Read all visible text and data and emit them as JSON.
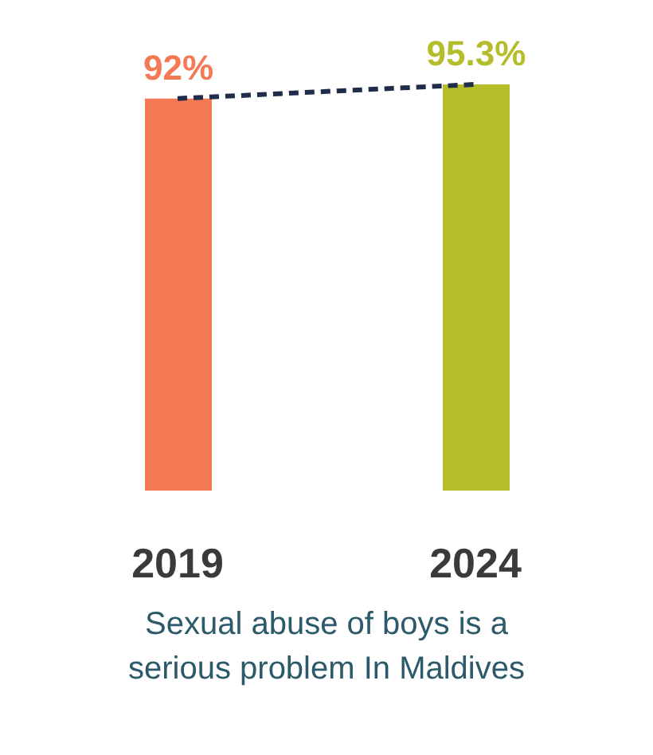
{
  "chart_data": {
    "type": "bar",
    "categories": [
      "2019",
      "2024"
    ],
    "xlabel": "Sexual abuse of boys is a serious problem In Maldives",
    "series": [
      {
        "colors": [
          "#f47a55",
          "#b5bd2b"
        ],
        "values": [
          92,
          95.3
        ],
        "value_labels": [
          "92%",
          "95.3%"
        ]
      },
      {
        "type": "line",
        "color": "#1f2d4a",
        "line_style": "dashed",
        "marker": "none",
        "values": [
          92,
          95.3
        ]
      }
    ]
  }
}
